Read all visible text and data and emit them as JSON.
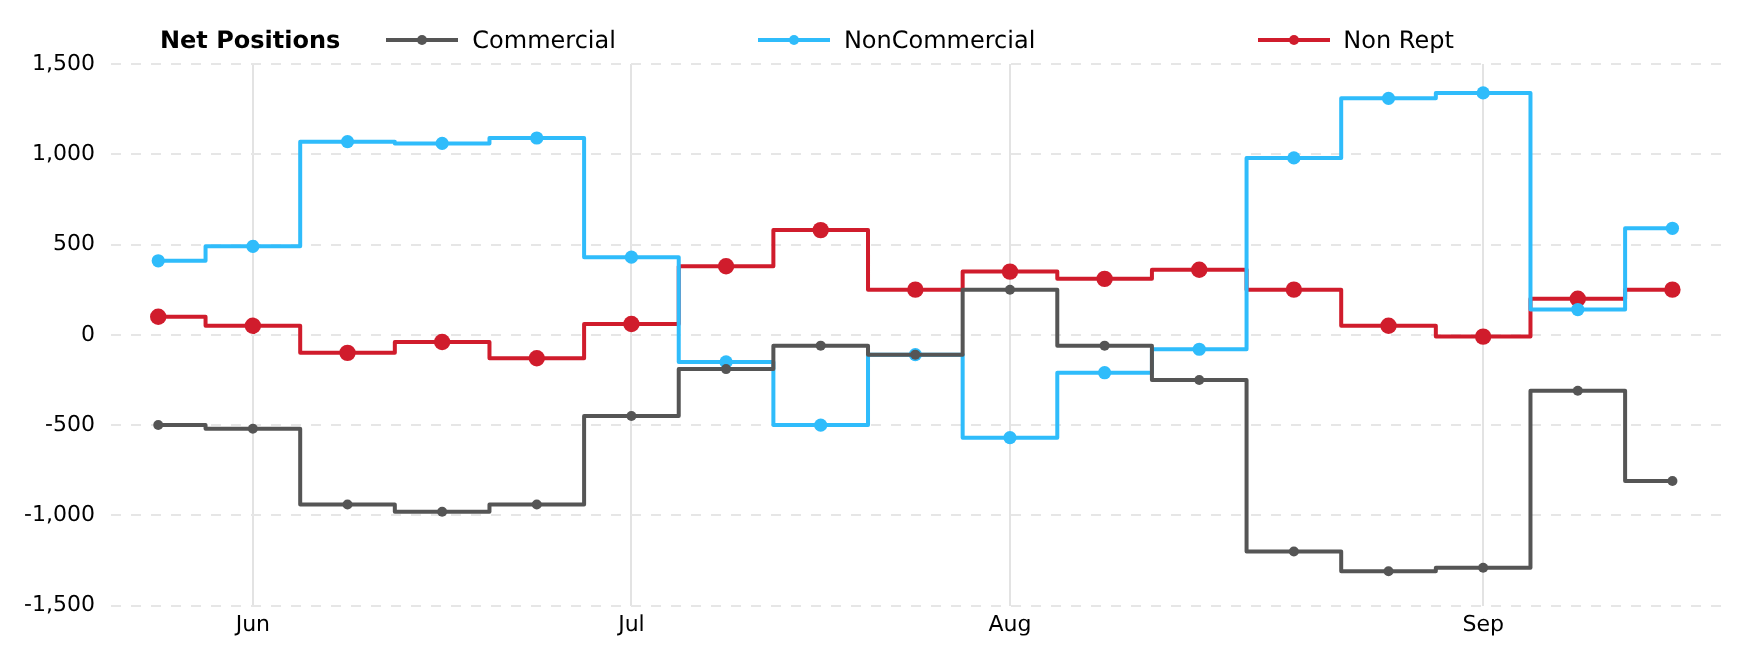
{
  "chart_data": {
    "type": "step",
    "legend_title": "Net Positions",
    "x": [
      "--05-30",
      "--06-06",
      "--06-13",
      "--06-20",
      "--06-27",
      "--07-04",
      "--07-11",
      "--07-18",
      "--07-25",
      "--08-01",
      "--08-08",
      "--08-15",
      "--08-22",
      "--08-29",
      "--09-05",
      "--09-12",
      "--09-19"
    ],
    "series": [
      {
        "name": "Commercial",
        "color": "#555555",
        "values": [
          -500,
          -520,
          -940,
          -980,
          -940,
          -450,
          -190,
          -60,
          -110,
          250,
          -60,
          -250,
          -1200,
          -1310,
          -1290,
          -310,
          -810
        ]
      },
      {
        "name": "NonCommercial",
        "color": "#2fbcfb",
        "values": [
          410,
          490,
          1070,
          1060,
          1090,
          430,
          -150,
          -500,
          -110,
          -570,
          -210,
          -80,
          980,
          1310,
          1340,
          140,
          590
        ]
      },
      {
        "name": "Non Rept",
        "color": "#d01c2c",
        "values": [
          100,
          50,
          -100,
          -40,
          -130,
          60,
          380,
          580,
          250,
          350,
          310,
          360,
          250,
          50,
          -10,
          200,
          250
        ]
      }
    ],
    "xlim": [
      "--05-26T12:00",
      "--09-22T16:00"
    ],
    "xticks": [
      {
        "value": "--06-06",
        "label": "Jun"
      },
      {
        "value": "--07-04",
        "label": "Jul"
      },
      {
        "value": "--08-01",
        "label": "Aug"
      },
      {
        "value": "--09-05",
        "label": "Sep"
      }
    ],
    "ylim": [
      -1500,
      1500
    ],
    "yticks": [
      {
        "value": -1500,
        "label": "-1,500"
      },
      {
        "value": -1000,
        "label": "-1,000"
      },
      -500,
      0,
      500,
      {
        "value": 1000,
        "label": "1,000"
      },
      {
        "value": 1500,
        "label": "1,500"
      }
    ],
    "grid": true,
    "legend": "top",
    "marker": "circle",
    "line_style": "solid"
  }
}
